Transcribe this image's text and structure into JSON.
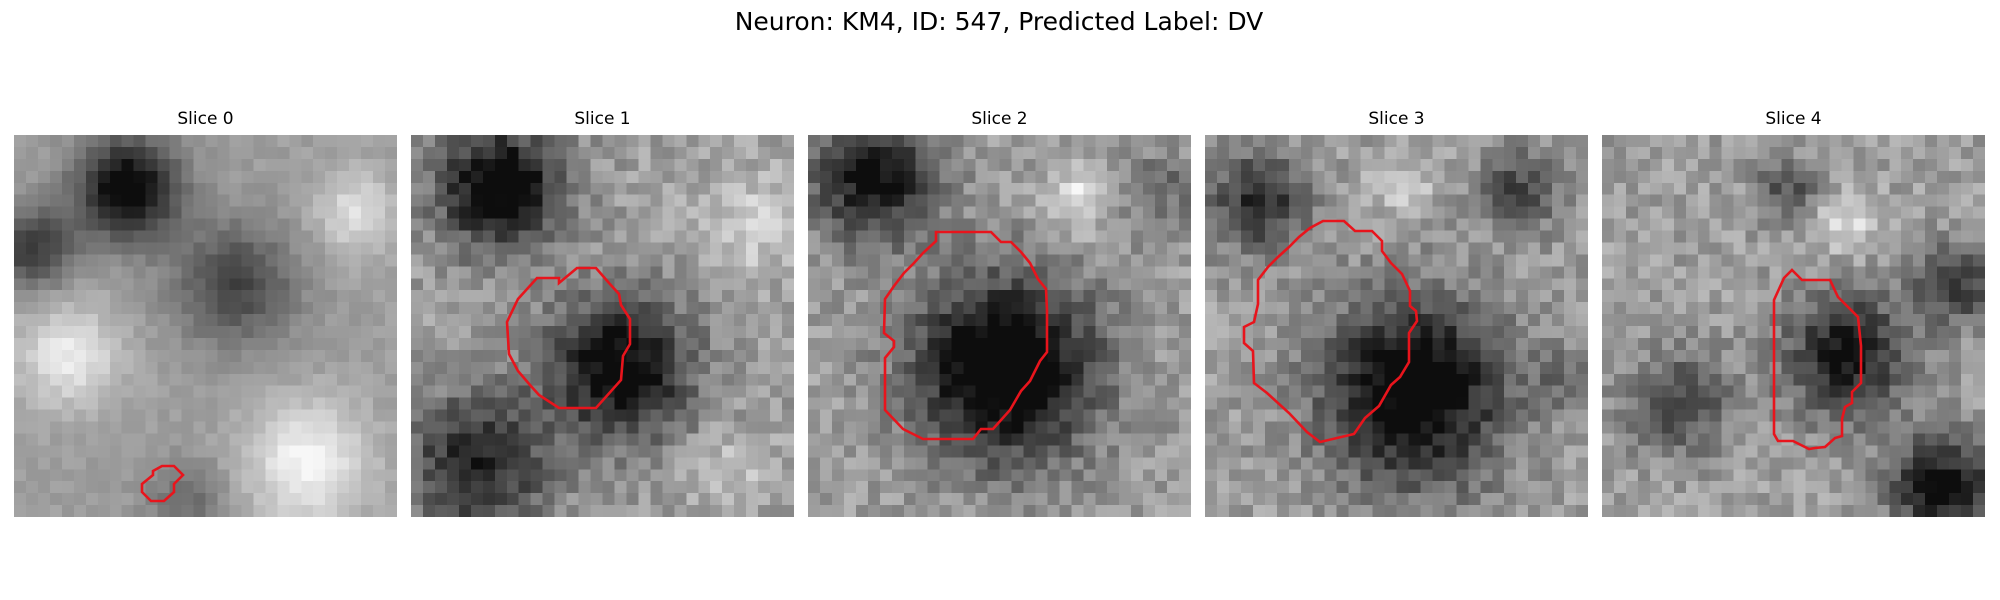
{
  "figure": {
    "title": "Neuron: KM4, ID: 547, Predicted Label: DV",
    "contour_color": "#e8141c"
  },
  "panels": [
    {
      "title": "Slice 0"
    },
    {
      "title": "Slice 1"
    },
    {
      "title": "Slice 2"
    },
    {
      "title": "Slice 3"
    },
    {
      "title": "Slice 4"
    }
  ]
}
